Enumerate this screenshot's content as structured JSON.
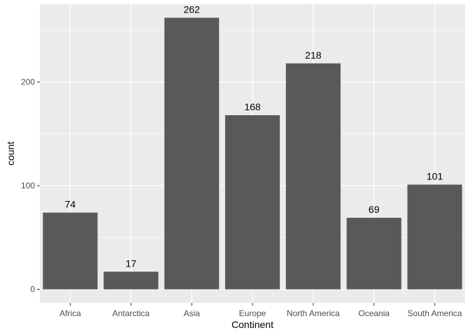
{
  "chart_data": {
    "type": "bar",
    "categories": [
      "Africa",
      "Antarctica",
      "Asia",
      "Europe",
      "North America",
      "Oceania",
      "South America"
    ],
    "values": [
      74,
      17,
      262,
      168,
      218,
      69,
      101
    ],
    "data_labels": [
      "74",
      "17",
      "262",
      "168",
      "218",
      "69",
      "101"
    ],
    "title": "",
    "xlabel": "Continent",
    "ylabel": "count",
    "ylim": [
      -13.1,
      275.1
    ],
    "yticks": [
      0,
      100,
      200
    ],
    "ytick_labels": [
      "0",
      "100",
      "200"
    ],
    "grid": true,
    "bar_color": "#595959",
    "panel_background": "#ebebeb",
    "gridline_color": "#ffffff"
  }
}
